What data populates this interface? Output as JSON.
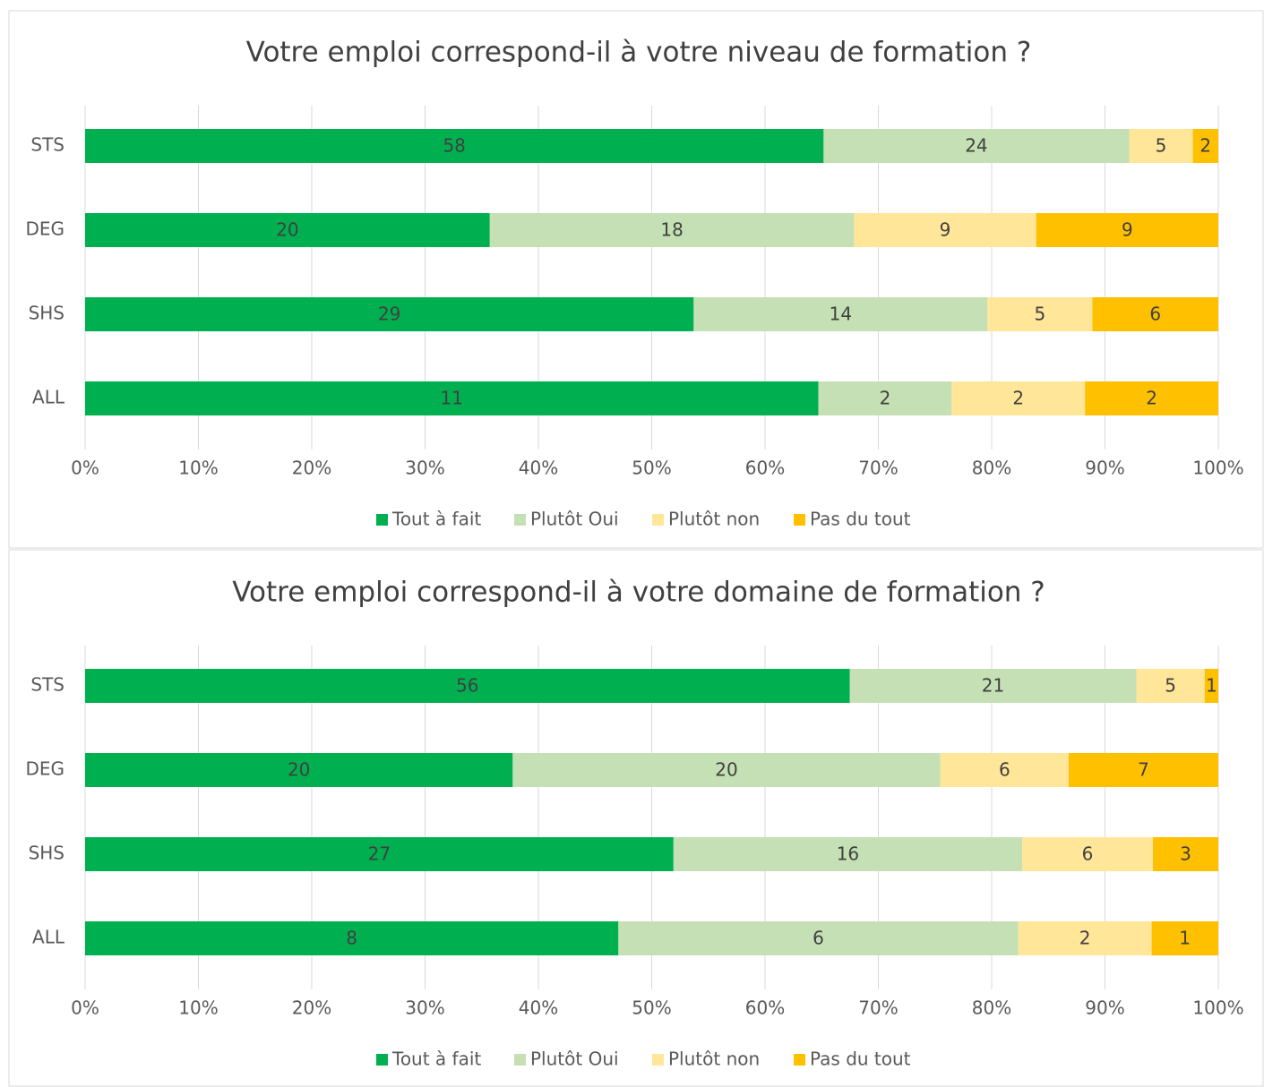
{
  "chart_data": [
    {
      "type": "bar",
      "orientation": "horizontal",
      "stacked": "percent",
      "title": "Votre emploi correspond-il à votre niveau de formation ?",
      "categories": [
        "STS",
        "DEG",
        "SHS",
        "ALL"
      ],
      "series": [
        {
          "name": "Tout à fait",
          "color": "#00b050",
          "values": [
            58,
            20,
            29,
            11
          ]
        },
        {
          "name": "Plutôt Oui",
          "color": "#c5e0b4",
          "values": [
            24,
            18,
            14,
            2
          ]
        },
        {
          "name": "Plutôt non",
          "color": "#ffe699",
          "values": [
            5,
            9,
            5,
            2
          ]
        },
        {
          "name": "Pas du tout",
          "color": "#ffc000",
          "values": [
            2,
            9,
            6,
            2
          ]
        }
      ],
      "xlim": [
        0,
        100
      ],
      "xticks": [
        {
          "value": 0,
          "label": "0%"
        },
        {
          "value": 10,
          "label": "10%"
        },
        {
          "value": 20,
          "label": "20%"
        },
        {
          "value": 30,
          "label": "30%"
        },
        {
          "value": 40,
          "label": "40%"
        },
        {
          "value": 50,
          "label": "50%"
        },
        {
          "value": 60,
          "label": "60%"
        },
        {
          "value": 70,
          "label": "70%"
        },
        {
          "value": 80,
          "label": "80%"
        },
        {
          "value": 90,
          "label": "90%"
        },
        {
          "value": 100,
          "label": "100%"
        }
      ],
      "grid": true,
      "legend": "bottom"
    },
    {
      "type": "bar",
      "orientation": "horizontal",
      "stacked": "percent",
      "title": "Votre emploi correspond-il à votre domaine de formation ?",
      "categories": [
        "STS",
        "DEG",
        "SHS",
        "ALL"
      ],
      "series": [
        {
          "name": "Tout à fait",
          "color": "#00b050",
          "values": [
            56,
            20,
            27,
            8
          ]
        },
        {
          "name": "Plutôt Oui",
          "color": "#c5e0b4",
          "values": [
            21,
            20,
            16,
            6
          ]
        },
        {
          "name": "Plutôt non",
          "color": "#ffe699",
          "values": [
            5,
            6,
            6,
            2
          ]
        },
        {
          "name": "Pas du tout",
          "color": "#ffc000",
          "values": [
            1,
            7,
            3,
            1
          ]
        }
      ],
      "xlim": [
        0,
        100
      ],
      "xticks": [
        {
          "value": 0,
          "label": "0%"
        },
        {
          "value": 10,
          "label": "10%"
        },
        {
          "value": 20,
          "label": "20%"
        },
        {
          "value": 30,
          "label": "30%"
        },
        {
          "value": 40,
          "label": "40%"
        },
        {
          "value": 50,
          "label": "50%"
        },
        {
          "value": 60,
          "label": "60%"
        },
        {
          "value": 70,
          "label": "70%"
        },
        {
          "value": 80,
          "label": "80%"
        },
        {
          "value": 90,
          "label": "90%"
        },
        {
          "value": 100,
          "label": "100%"
        }
      ],
      "grid": true,
      "legend": "bottom"
    }
  ]
}
